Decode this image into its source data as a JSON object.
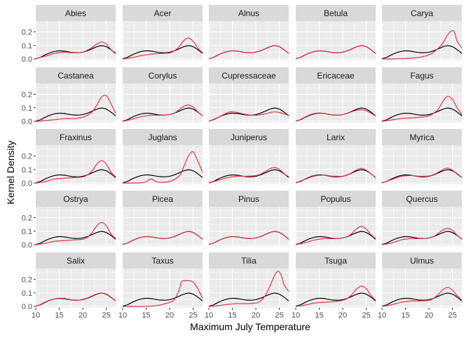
{
  "chart_data": {
    "type": "line",
    "xlabel": "Maximum July Temperature",
    "ylabel": "Kernel Density",
    "xlim": [
      10,
      27
    ],
    "ylim": [
      -0.01,
      0.28
    ],
    "x_ticks": [
      "10",
      "15",
      "20",
      "25"
    ],
    "y_ticks": [
      "0.0",
      "0.1",
      "0.2"
    ],
    "grid": true,
    "layout": "facet_wrap 5x5",
    "colors": {
      "reference": "#000000",
      "taxon": "#E0344A",
      "panel_bg": "#EBEBEB",
      "strip_bg": "#D9D9D9",
      "grid": "#FFFFFF"
    },
    "reference_curve": {
      "x": [
        10,
        11,
        12,
        13,
        14,
        15,
        16,
        17,
        18,
        19,
        20,
        21,
        22,
        23,
        24,
        25,
        26,
        27
      ],
      "y": [
        0.002,
        0.012,
        0.03,
        0.045,
        0.055,
        0.06,
        0.058,
        0.052,
        0.047,
        0.046,
        0.05,
        0.06,
        0.075,
        0.09,
        0.098,
        0.09,
        0.068,
        0.04
      ]
    },
    "panels": [
      {
        "name": "Abies",
        "x": [
          10,
          12,
          14,
          16,
          18,
          20,
          21,
          22,
          23,
          24,
          25,
          26,
          27
        ],
        "y": [
          0.002,
          0.02,
          0.04,
          0.05,
          0.045,
          0.05,
          0.065,
          0.085,
          0.11,
          0.125,
          0.11,
          0.07,
          0.045
        ]
      },
      {
        "name": "Acer",
        "x": [
          10,
          12,
          14,
          16,
          18,
          20,
          21,
          22,
          23,
          24,
          25,
          26,
          27
        ],
        "y": [
          0.0,
          0.01,
          0.025,
          0.035,
          0.04,
          0.045,
          0.06,
          0.09,
          0.135,
          0.155,
          0.13,
          0.08,
          0.045
        ]
      },
      {
        "name": "Alnus",
        "x": [
          10,
          11,
          12,
          13,
          14,
          15,
          16,
          17,
          18,
          19,
          20,
          21,
          22,
          23,
          24,
          25,
          26,
          27
        ],
        "y": [
          0.002,
          0.012,
          0.03,
          0.045,
          0.055,
          0.06,
          0.058,
          0.052,
          0.047,
          0.046,
          0.05,
          0.06,
          0.075,
          0.09,
          0.098,
          0.09,
          0.068,
          0.04
        ]
      },
      {
        "name": "Betula",
        "x": [
          10,
          11,
          12,
          13,
          14,
          15,
          16,
          17,
          18,
          19,
          20,
          21,
          22,
          23,
          24,
          25,
          26,
          27
        ],
        "y": [
          0.002,
          0.012,
          0.03,
          0.045,
          0.055,
          0.06,
          0.058,
          0.052,
          0.047,
          0.046,
          0.05,
          0.06,
          0.075,
          0.09,
          0.098,
          0.09,
          0.068,
          0.04
        ]
      },
      {
        "name": "Carya",
        "x": [
          10,
          12,
          14,
          16,
          18,
          19,
          20,
          21,
          22,
          23,
          24,
          25,
          25.5,
          26,
          27
        ],
        "y": [
          0.0,
          0.0,
          0.002,
          0.005,
          0.012,
          0.02,
          0.03,
          0.05,
          0.08,
          0.12,
          0.18,
          0.21,
          0.19,
          0.13,
          0.08
        ]
      },
      {
        "name": "Castanea",
        "x": [
          10,
          12,
          14,
          16,
          18,
          20,
          21,
          22,
          23,
          24,
          25,
          26,
          27
        ],
        "y": [
          0.0,
          0.005,
          0.012,
          0.02,
          0.02,
          0.03,
          0.045,
          0.07,
          0.12,
          0.18,
          0.19,
          0.13,
          0.06
        ]
      },
      {
        "name": "Corylus",
        "x": [
          10,
          12,
          14,
          16,
          18,
          20,
          21,
          22,
          23,
          24,
          25,
          26,
          27
        ],
        "y": [
          0.0,
          0.015,
          0.035,
          0.045,
          0.045,
          0.05,
          0.06,
          0.085,
          0.11,
          0.12,
          0.105,
          0.07,
          0.04
        ]
      },
      {
        "name": "Cupressaceae",
        "x": [
          10,
          12,
          14,
          15,
          16,
          18,
          20,
          22,
          23,
          24,
          25,
          26,
          27
        ],
        "y": [
          0.0,
          0.03,
          0.065,
          0.07,
          0.065,
          0.05,
          0.045,
          0.055,
          0.065,
          0.07,
          0.065,
          0.055,
          0.045
        ]
      },
      {
        "name": "Ericaceae",
        "x": [
          10,
          11,
          12,
          13,
          14,
          15,
          16,
          17,
          18,
          19,
          20,
          21,
          22,
          23,
          24,
          25,
          26,
          27
        ],
        "y": [
          0.002,
          0.014,
          0.032,
          0.048,
          0.058,
          0.062,
          0.058,
          0.051,
          0.046,
          0.045,
          0.05,
          0.06,
          0.072,
          0.082,
          0.085,
          0.078,
          0.06,
          0.04
        ]
      },
      {
        "name": "Fagus",
        "x": [
          10,
          12,
          14,
          16,
          18,
          20,
          21,
          22,
          23,
          24,
          25,
          26,
          27
        ],
        "y": [
          0.0,
          0.01,
          0.02,
          0.025,
          0.03,
          0.04,
          0.06,
          0.09,
          0.15,
          0.185,
          0.16,
          0.1,
          0.05
        ]
      },
      {
        "name": "Fraxinus",
        "x": [
          10,
          12,
          14,
          16,
          18,
          20,
          21,
          22,
          23,
          24,
          25,
          26,
          27
        ],
        "y": [
          0.0,
          0.01,
          0.03,
          0.035,
          0.04,
          0.045,
          0.06,
          0.09,
          0.14,
          0.165,
          0.14,
          0.08,
          0.045
        ]
      },
      {
        "name": "Juglans",
        "x": [
          10,
          12,
          14,
          15,
          16,
          17,
          18,
          20,
          22,
          23,
          24,
          25,
          26,
          27
        ],
        "y": [
          0.0,
          0.0,
          0.002,
          0.01,
          0.03,
          0.012,
          0.005,
          0.012,
          0.05,
          0.12,
          0.2,
          0.23,
          0.16,
          0.08
        ]
      },
      {
        "name": "Juniperus",
        "x": [
          10,
          12,
          14,
          16,
          18,
          20,
          21,
          22,
          23,
          24,
          25,
          26,
          27
        ],
        "y": [
          0.0,
          0.02,
          0.04,
          0.05,
          0.05,
          0.055,
          0.065,
          0.085,
          0.105,
          0.115,
          0.1,
          0.07,
          0.045
        ]
      },
      {
        "name": "Larix",
        "x": [
          10,
          12,
          14,
          16,
          18,
          20,
          21,
          22,
          23,
          24,
          25,
          26,
          27
        ],
        "y": [
          0.002,
          0.028,
          0.052,
          0.058,
          0.05,
          0.05,
          0.06,
          0.078,
          0.098,
          0.108,
          0.095,
          0.068,
          0.04
        ]
      },
      {
        "name": "Myrica",
        "x": [
          10,
          12,
          14,
          16,
          18,
          20,
          21,
          22,
          23,
          24,
          25,
          26,
          27
        ],
        "y": [
          0.0,
          0.025,
          0.048,
          0.055,
          0.05,
          0.052,
          0.062,
          0.08,
          0.1,
          0.11,
          0.095,
          0.065,
          0.04
        ]
      },
      {
        "name": "Ostrya",
        "x": [
          10,
          12,
          14,
          16,
          18,
          20,
          21,
          22,
          23,
          24,
          25,
          26,
          27
        ],
        "y": [
          0.0,
          0.01,
          0.025,
          0.03,
          0.035,
          0.04,
          0.055,
          0.09,
          0.14,
          0.165,
          0.14,
          0.08,
          0.045
        ]
      },
      {
        "name": "Picea",
        "x": [
          10,
          11,
          12,
          13,
          14,
          15,
          16,
          17,
          18,
          19,
          20,
          21,
          22,
          23,
          24,
          25,
          26,
          27
        ],
        "y": [
          0.002,
          0.012,
          0.03,
          0.045,
          0.055,
          0.06,
          0.058,
          0.052,
          0.047,
          0.046,
          0.05,
          0.06,
          0.075,
          0.09,
          0.098,
          0.09,
          0.068,
          0.04
        ]
      },
      {
        "name": "Pinus",
        "x": [
          10,
          11,
          12,
          13,
          14,
          15,
          16,
          17,
          18,
          19,
          20,
          21,
          22,
          23,
          24,
          25,
          26,
          27
        ],
        "y": [
          0.002,
          0.012,
          0.03,
          0.045,
          0.055,
          0.06,
          0.058,
          0.052,
          0.047,
          0.046,
          0.05,
          0.06,
          0.075,
          0.09,
          0.098,
          0.09,
          0.068,
          0.04
        ]
      },
      {
        "name": "Populus",
        "x": [
          10,
          12,
          14,
          16,
          18,
          20,
          21,
          22,
          23,
          24,
          25,
          26,
          27
        ],
        "y": [
          0.0,
          0.015,
          0.035,
          0.045,
          0.045,
          0.05,
          0.06,
          0.085,
          0.12,
          0.135,
          0.115,
          0.075,
          0.045
        ]
      },
      {
        "name": "Quercus",
        "x": [
          10,
          12,
          14,
          16,
          18,
          20,
          21,
          22,
          23,
          24,
          25,
          26,
          27
        ],
        "y": [
          0.0,
          0.012,
          0.035,
          0.045,
          0.045,
          0.05,
          0.06,
          0.085,
          0.11,
          0.12,
          0.105,
          0.07,
          0.04
        ]
      },
      {
        "name": "Salix",
        "x": [
          10,
          11,
          12,
          13,
          14,
          15,
          16,
          17,
          18,
          19,
          20,
          21,
          22,
          23,
          24,
          25,
          26,
          27
        ],
        "y": [
          0.002,
          0.014,
          0.032,
          0.046,
          0.055,
          0.058,
          0.055,
          0.05,
          0.046,
          0.046,
          0.052,
          0.062,
          0.078,
          0.092,
          0.098,
          0.088,
          0.066,
          0.04
        ]
      },
      {
        "name": "Taxus",
        "x": [
          10,
          14,
          16,
          17,
          18,
          19,
          20,
          21,
          22,
          22.5,
          23,
          24,
          25,
          26,
          27
        ],
        "y": [
          0.0,
          0.0,
          0.002,
          0.005,
          0.01,
          0.02,
          0.03,
          0.05,
          0.12,
          0.18,
          0.19,
          0.19,
          0.18,
          0.13,
          0.06
        ]
      },
      {
        "name": "Tilia",
        "x": [
          10,
          12,
          14,
          16,
          18,
          20,
          21,
          22,
          23,
          24,
          24.8,
          25.5,
          26,
          27
        ],
        "y": [
          0.0,
          0.005,
          0.015,
          0.02,
          0.02,
          0.025,
          0.04,
          0.08,
          0.15,
          0.23,
          0.26,
          0.22,
          0.16,
          0.11
        ]
      },
      {
        "name": "Tsuga",
        "x": [
          10,
          12,
          14,
          16,
          18,
          20,
          21,
          22,
          23,
          24,
          25,
          26,
          27
        ],
        "y": [
          0.0,
          0.01,
          0.025,
          0.03,
          0.035,
          0.045,
          0.06,
          0.09,
          0.13,
          0.15,
          0.13,
          0.08,
          0.045
        ]
      },
      {
        "name": "Ulmus",
        "x": [
          10,
          12,
          14,
          16,
          18,
          20,
          21,
          22,
          23,
          24,
          25,
          26,
          27
        ],
        "y": [
          0.0,
          0.012,
          0.03,
          0.04,
          0.04,
          0.045,
          0.06,
          0.09,
          0.125,
          0.14,
          0.12,
          0.08,
          0.045
        ]
      }
    ]
  }
}
